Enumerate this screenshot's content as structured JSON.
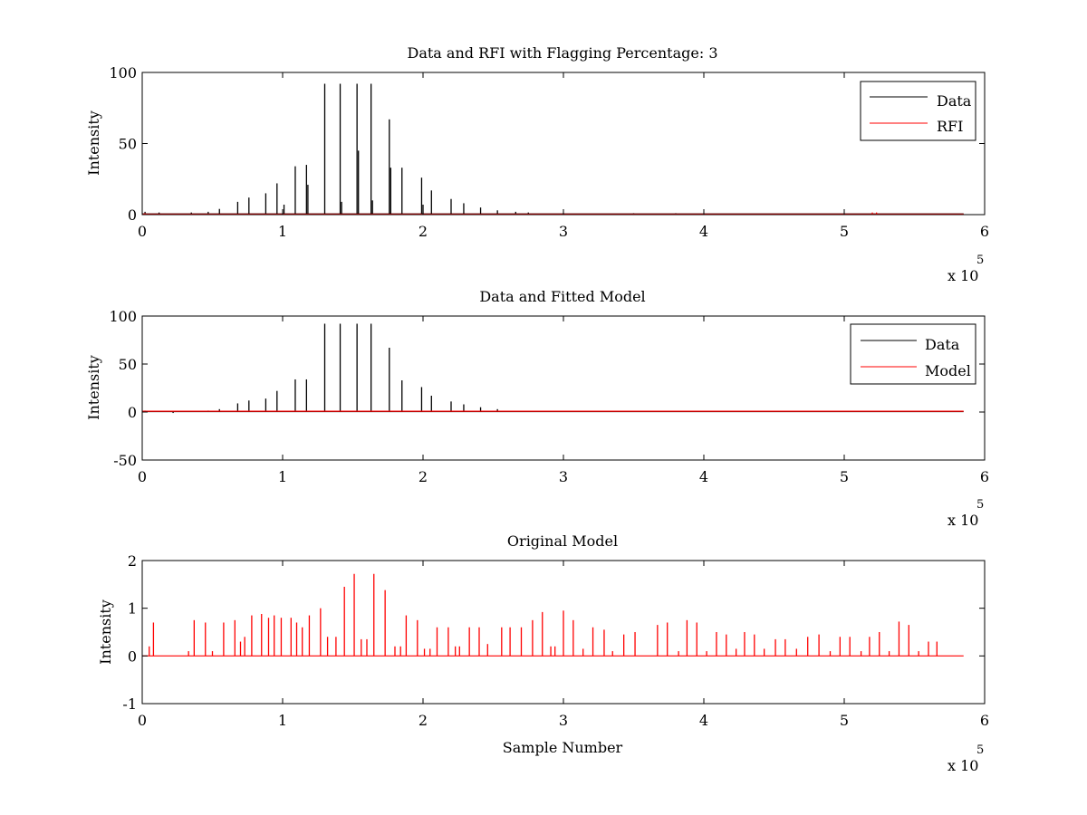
{
  "chart_data": [
    {
      "type": "line",
      "title": "Data and RFI with Flagging Percentage: 3",
      "xlabel": "",
      "ylabel": "Intensity",
      "xlim": [
        0,
        600000
      ],
      "ylim": [
        0,
        100
      ],
      "xticks": [
        0,
        100000,
        200000,
        300000,
        400000,
        500000,
        600000
      ],
      "xtick_labels": [
        "0",
        "1",
        "2",
        "3",
        "4",
        "5",
        "6"
      ],
      "yticks": [
        0,
        50,
        100
      ],
      "ytick_labels": [
        "0",
        "50",
        "100"
      ],
      "x_exponent_label": "x 10",
      "x_exponent_power": "5",
      "baseline": 0.5,
      "legend_position": "top-right",
      "grid": false,
      "series": [
        {
          "name": "Data",
          "color": "#000000",
          "baseline": 0.5,
          "spikes": [
            [
              2000,
              2
            ],
            [
              12000,
              1.5
            ],
            [
              35000,
              1.5
            ],
            [
              47000,
              2
            ],
            [
              55000,
              4
            ],
            [
              68000,
              9
            ],
            [
              76000,
              12
            ],
            [
              88000,
              15
            ],
            [
              96000,
              22
            ],
            [
              101000,
              7
            ],
            [
              109000,
              34
            ],
            [
              117000,
              35
            ],
            [
              118000,
              21
            ],
            [
              130000,
              92
            ],
            [
              141000,
              92
            ],
            [
              142000,
              9
            ],
            [
              153000,
              92
            ],
            [
              154000,
              45
            ],
            [
              163000,
              92
            ],
            [
              164000,
              10
            ],
            [
              176000,
              67
            ],
            [
              177000,
              33
            ],
            [
              185000,
              33
            ],
            [
              199000,
              26
            ],
            [
              200000,
              7
            ],
            [
              206000,
              17
            ],
            [
              220000,
              11
            ],
            [
              229000,
              8
            ],
            [
              241000,
              5
            ],
            [
              253000,
              3
            ],
            [
              266000,
              2
            ],
            [
              275000,
              1.5
            ],
            [
              300000,
              1
            ],
            [
              350000,
              1
            ],
            [
              380000,
              1
            ]
          ]
        },
        {
          "name": "RFI",
          "color": "#ff0000",
          "baseline": 0.3,
          "spikes": [
            [
              2000,
              1
            ],
            [
              520000,
              1.5
            ],
            [
              523000,
              1.5
            ]
          ]
        }
      ]
    },
    {
      "type": "line",
      "title": "Data and Fitted Model",
      "xlabel": "",
      "ylabel": "Intensity",
      "xlim": [
        0,
        600000
      ],
      "ylim": [
        -50,
        100
      ],
      "xticks": [
        0,
        100000,
        200000,
        300000,
        400000,
        500000,
        600000
      ],
      "xtick_labels": [
        "0",
        "1",
        "2",
        "3",
        "4",
        "5",
        "6"
      ],
      "yticks": [
        -50,
        0,
        50,
        100
      ],
      "ytick_labels": [
        "-50",
        "0",
        "50",
        "100"
      ],
      "x_exponent_label": "x 10",
      "x_exponent_power": "5",
      "baseline": 0.5,
      "legend_position": "top-right",
      "grid": false,
      "series": [
        {
          "name": "Data",
          "color": "#000000",
          "baseline": 0.5,
          "spikes": [
            [
              2000,
              1.5
            ],
            [
              12000,
              1
            ],
            [
              22000,
              -1
            ],
            [
              35000,
              1
            ],
            [
              47000,
              1.5
            ],
            [
              55000,
              3
            ],
            [
              68000,
              9
            ],
            [
              76000,
              12
            ],
            [
              88000,
              14
            ],
            [
              96000,
              22
            ],
            [
              109000,
              34
            ],
            [
              117000,
              34
            ],
            [
              130000,
              92
            ],
            [
              141000,
              92
            ],
            [
              153000,
              92
            ],
            [
              163000,
              92
            ],
            [
              176000,
              67
            ],
            [
              185000,
              33
            ],
            [
              199000,
              26
            ],
            [
              206000,
              17
            ],
            [
              220000,
              11
            ],
            [
              229000,
              8
            ],
            [
              241000,
              5
            ],
            [
              253000,
              3
            ]
          ]
        },
        {
          "name": "Model",
          "color": "#ff0000",
          "baseline": 0.8,
          "spikes": []
        }
      ]
    },
    {
      "type": "line",
      "title": "Original Model",
      "xlabel": "Sample Number",
      "ylabel": "Intensity",
      "xlim": [
        0,
        600000
      ],
      "ylim": [
        -1,
        2
      ],
      "xticks": [
        0,
        100000,
        200000,
        300000,
        400000,
        500000,
        600000
      ],
      "xtick_labels": [
        "0",
        "1",
        "2",
        "3",
        "4",
        "5",
        "6"
      ],
      "yticks": [
        -1,
        0,
        1,
        2
      ],
      "ytick_labels": [
        "-1",
        "0",
        "1",
        "2"
      ],
      "x_exponent_label": "x 10",
      "x_exponent_power": "5",
      "baseline": 0,
      "legend_position": "none",
      "grid": false,
      "series": [
        {
          "color": "#ff0000",
          "baseline": 0,
          "spikes": [
            [
              5000,
              0.2
            ],
            [
              8000,
              0.7
            ],
            [
              33000,
              0.1
            ],
            [
              37000,
              0.75
            ],
            [
              45000,
              0.7
            ],
            [
              50000,
              0.1
            ],
            [
              58000,
              0.7
            ],
            [
              66000,
              0.75
            ],
            [
              70000,
              0.3
            ],
            [
              73000,
              0.4
            ],
            [
              78000,
              0.85
            ],
            [
              85000,
              0.88
            ],
            [
              90000,
              0.8
            ],
            [
              94000,
              0.85
            ],
            [
              99000,
              0.8
            ],
            [
              106000,
              0.8
            ],
            [
              110000,
              0.7
            ],
            [
              114000,
              0.6
            ],
            [
              119000,
              0.85
            ],
            [
              127000,
              1.0
            ],
            [
              132000,
              0.4
            ],
            [
              138000,
              0.4
            ],
            [
              144000,
              1.45
            ],
            [
              151000,
              1.72
            ],
            [
              156000,
              0.35
            ],
            [
              160000,
              0.35
            ],
            [
              165000,
              1.72
            ],
            [
              173000,
              1.38
            ],
            [
              180000,
              0.2
            ],
            [
              184000,
              0.2
            ],
            [
              188000,
              0.85
            ],
            [
              196000,
              0.75
            ],
            [
              201000,
              0.15
            ],
            [
              205000,
              0.15
            ],
            [
              210000,
              0.6
            ],
            [
              218000,
              0.6
            ],
            [
              223000,
              0.2
            ],
            [
              226000,
              0.2
            ],
            [
              233000,
              0.6
            ],
            [
              240000,
              0.6
            ],
            [
              246000,
              0.25
            ],
            [
              256000,
              0.6
            ],
            [
              262000,
              0.6
            ],
            [
              270000,
              0.6
            ],
            [
              278000,
              0.75
            ],
            [
              285000,
              0.92
            ],
            [
              291000,
              0.2
            ],
            [
              294000,
              0.2
            ],
            [
              300000,
              0.95
            ],
            [
              307000,
              0.75
            ],
            [
              314000,
              0.15
            ],
            [
              321000,
              0.6
            ],
            [
              329000,
              0.55
            ],
            [
              335000,
              0.1
            ],
            [
              343000,
              0.45
            ],
            [
              351000,
              0.5
            ],
            [
              367000,
              0.65
            ],
            [
              374000,
              0.7
            ],
            [
              382000,
              0.1
            ],
            [
              388000,
              0.75
            ],
            [
              395000,
              0.7
            ],
            [
              402000,
              0.1
            ],
            [
              409000,
              0.5
            ],
            [
              416000,
              0.45
            ],
            [
              423000,
              0.15
            ],
            [
              429000,
              0.5
            ],
            [
              436000,
              0.45
            ],
            [
              443000,
              0.15
            ],
            [
              451000,
              0.35
            ],
            [
              458000,
              0.35
            ],
            [
              466000,
              0.15
            ],
            [
              474000,
              0.4
            ],
            [
              482000,
              0.45
            ],
            [
              490000,
              0.1
            ],
            [
              497000,
              0.4
            ],
            [
              504000,
              0.4
            ],
            [
              512000,
              0.1
            ],
            [
              518000,
              0.4
            ],
            [
              525000,
              0.5
            ],
            [
              532000,
              0.1
            ],
            [
              539000,
              0.72
            ],
            [
              546000,
              0.65
            ],
            [
              553000,
              0.1
            ],
            [
              560000,
              0.3
            ],
            [
              566000,
              0.3
            ]
          ]
        }
      ]
    }
  ]
}
